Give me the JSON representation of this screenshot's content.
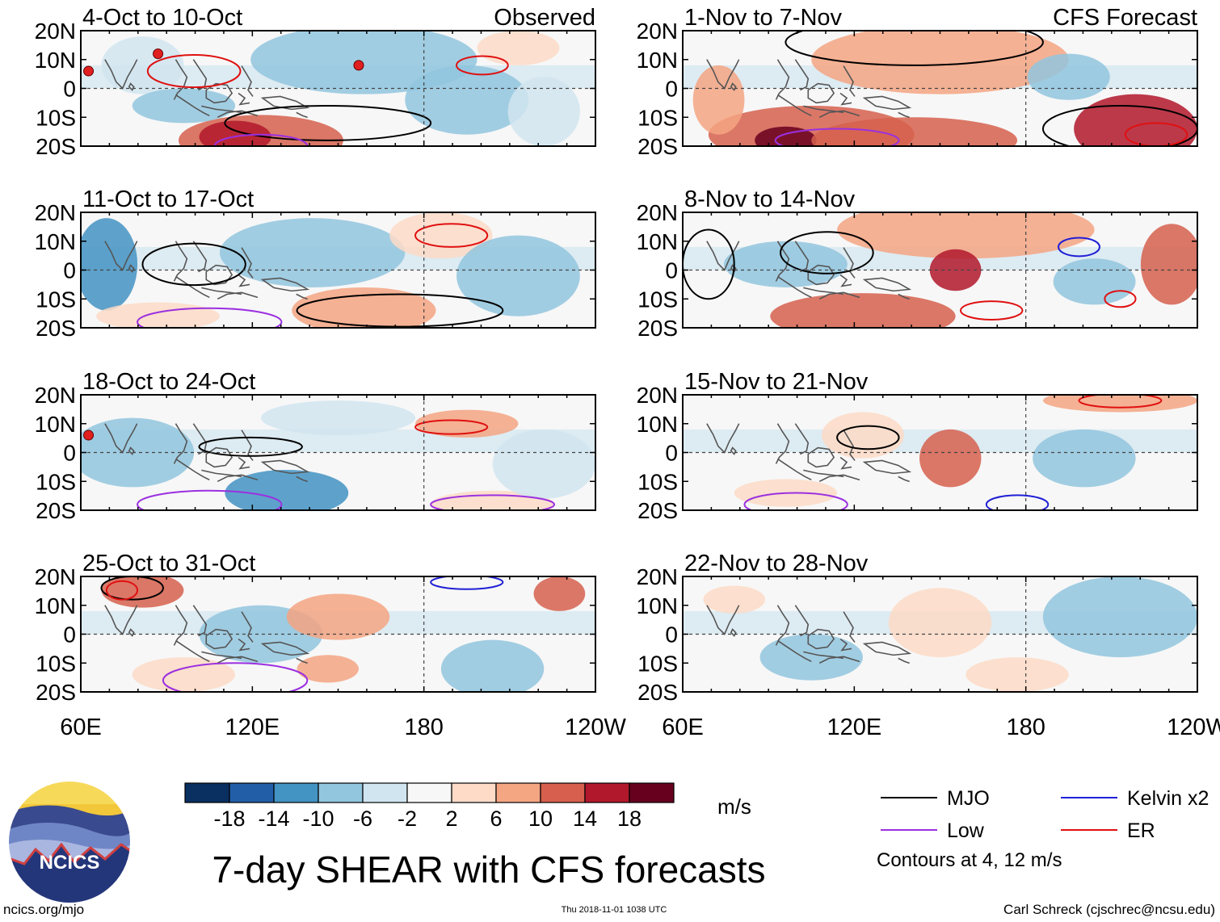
{
  "headers": {
    "observed": "Observed",
    "forecast": "CFS Forecast"
  },
  "panels": [
    {
      "period": "4-Oct to 10-Oct",
      "source": "observed",
      "tc_markers": 3
    },
    {
      "period": "11-Oct to 17-Oct",
      "source": "observed",
      "tc_markers": 0
    },
    {
      "period": "18-Oct to 24-Oct",
      "source": "observed",
      "tc_markers": 1
    },
    {
      "period": "25-Oct to 31-Oct",
      "source": "observed",
      "tc_markers": 0
    },
    {
      "period": "1-Nov to 7-Nov",
      "source": "forecast",
      "tc_markers": 0
    },
    {
      "period": "8-Nov to 14-Nov",
      "source": "forecast",
      "tc_markers": 0
    },
    {
      "period": "15-Nov to 21-Nov",
      "source": "forecast",
      "tc_markers": 0
    },
    {
      "period": "22-Nov to 28-Nov",
      "source": "forecast",
      "tc_markers": 0
    }
  ],
  "lat_labels": [
    "20N",
    "10N",
    "0",
    "10S",
    "20S"
  ],
  "lon_labels": [
    "60E",
    "120E",
    "180",
    "120W"
  ],
  "colorbar": {
    "colors": [
      "#0a2f61",
      "#225ea8",
      "#4393c3",
      "#92c5de",
      "#d1e5f0",
      "#f7f7f7",
      "#fddbc7",
      "#f4a582",
      "#d6604d",
      "#b2182b",
      "#67001f"
    ],
    "tick_labels": [
      "-18",
      "-14",
      "-10",
      "-6",
      "-2",
      "2",
      "6",
      "10",
      "14",
      "18"
    ],
    "units": "m/s"
  },
  "legend": {
    "items": [
      {
        "label": "MJO",
        "color": "#000000"
      },
      {
        "label": "Kelvin x2",
        "color": "#1f1fd6"
      },
      {
        "label": "Low",
        "color": "#9b30e0"
      },
      {
        "label": "ER",
        "color": "#e01010"
      }
    ],
    "note": "Contours at 4, 12 m/s"
  },
  "title": "7-day SHEAR with CFS forecasts",
  "logo_text": "NCICS",
  "footer": {
    "left": "ncics.org/mjo",
    "center": "Thu 2018-11-01 1038 UTC",
    "right": "Carl Schreck (cjschrec@ncsu.edu)"
  }
}
